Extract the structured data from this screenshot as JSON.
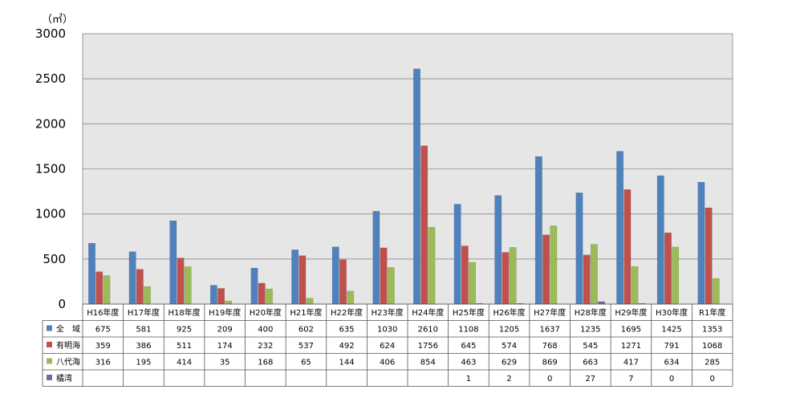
{
  "chart_data": {
    "type": "bar",
    "unit_label": "（㎥）",
    "ylim": [
      0,
      3000
    ],
    "yticks": [
      0,
      500,
      1000,
      1500,
      2000,
      2500,
      3000
    ],
    "grid": true,
    "legend_placement": "left-of-data-table",
    "categories": [
      "H16年度",
      "H17年度",
      "H18年度",
      "H19年度",
      "H20年度",
      "H21年度",
      "H22年度",
      "H23年度",
      "H24年度",
      "H25年度",
      "H26年度",
      "H27年度",
      "H28年度",
      "H29年度",
      "H30年度",
      "R1年度"
    ],
    "series": [
      {
        "name": "全　域",
        "color": "#4f81bd",
        "values": [
          675,
          581,
          925,
          209,
          400,
          602,
          635,
          1030,
          2610,
          1108,
          1205,
          1637,
          1235,
          1695,
          1425,
          1353
        ]
      },
      {
        "name": "有明海",
        "color": "#c0504d",
        "values": [
          359,
          386,
          511,
          174,
          232,
          537,
          492,
          624,
          1756,
          645,
          574,
          768,
          545,
          1271,
          791,
          1068
        ]
      },
      {
        "name": "八代海",
        "color": "#9bbb59",
        "values": [
          316,
          195,
          414,
          35,
          168,
          65,
          144,
          406,
          854,
          463,
          629,
          869,
          663,
          417,
          634,
          285
        ]
      },
      {
        "name": "橘湾",
        "color": "#8064a2",
        "values": [
          null,
          null,
          null,
          null,
          null,
          null,
          null,
          null,
          null,
          1,
          2,
          0,
          27,
          7,
          0,
          0
        ]
      }
    ]
  }
}
